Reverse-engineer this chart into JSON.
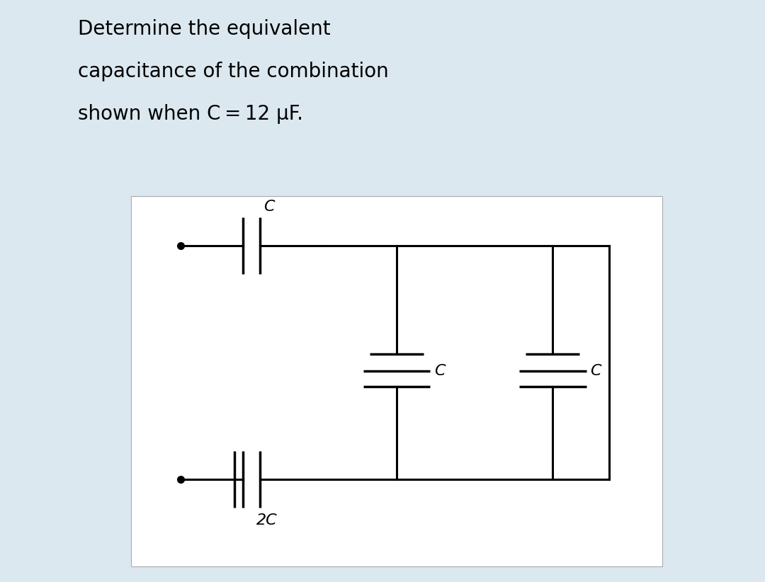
{
  "bg_color": "#dce8f0",
  "box_color": "#ffffff",
  "line_color": "#000000",
  "title_lines": [
    "Determine the equivalent",
    "capacitance of the combination",
    "shown when C = 12 μF."
  ],
  "title_fontsize": 20,
  "circuit_label_fontsize": 16,
  "lw": 2.2,
  "cap_plate_lw": 2.5,
  "dot_size": 7
}
